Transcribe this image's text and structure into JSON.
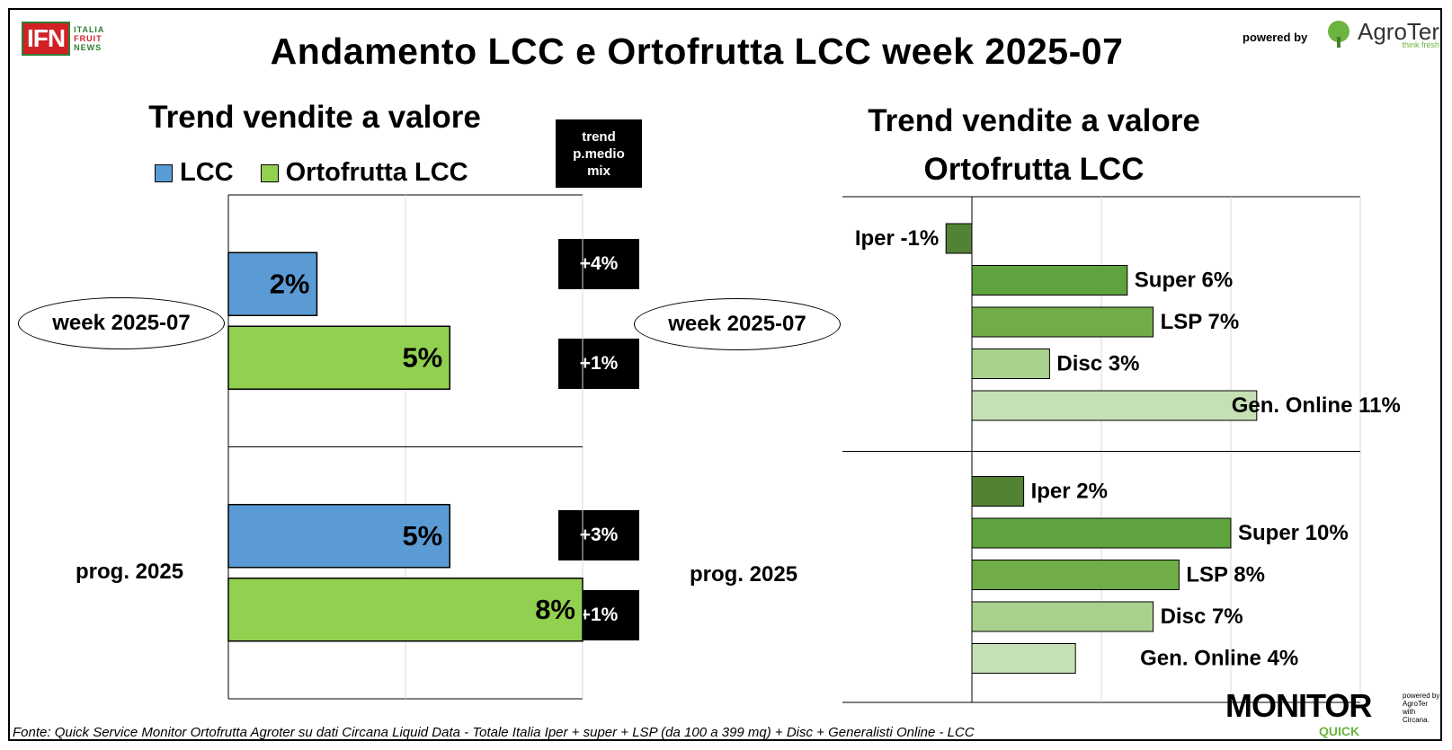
{
  "header": {
    "title": "Andamento LCC e Ortofrutta LCC week 2025-07",
    "ifn_logo": {
      "main": "IFN",
      "side1": "ITALIA",
      "side2": "FRUIT",
      "side3": "NEWS"
    },
    "powered_by": "powered by",
    "agroter_logo": "AgroTer",
    "agroter_tagline": "think fresh"
  },
  "left": {
    "subtitle": "Trend vendite a valore",
    "legend": [
      {
        "name": "LCC",
        "color": "#5b9bd5"
      },
      {
        "name": "Ortofrutta LCC",
        "color": "#92d050"
      }
    ],
    "trend_header": [
      "trend",
      "p.medio",
      "mix"
    ],
    "row_labels": [
      "week 2025-07",
      "prog. 2025"
    ],
    "trend_values": [
      "+4%",
      "+1%",
      "+3%",
      "+1%"
    ]
  },
  "right": {
    "subtitle_line1": "Trend vendite a valore",
    "subtitle_line2": "Ortofrutta LCC",
    "row_labels": [
      "week 2025-07",
      "prog. 2025"
    ]
  },
  "chart_data": [
    {
      "type": "bar",
      "orientation": "horizontal",
      "title": "Trend vendite a valore",
      "categories": [
        "week 2025-07",
        "prog. 2025"
      ],
      "series": [
        {
          "name": "LCC",
          "color": "#5b9bd5",
          "values": [
            2,
            5
          ],
          "labels": [
            "2%",
            "5%"
          ]
        },
        {
          "name": "Ortofrutta LCC",
          "color": "#92d050",
          "values": [
            5,
            8
          ],
          "labels": [
            "5%",
            "8%"
          ]
        }
      ],
      "xlim": [
        0,
        8
      ],
      "grid": true,
      "legend": "top"
    },
    {
      "type": "bar",
      "orientation": "horizontal",
      "title": "Trend vendite a valore Ortofrutta LCC",
      "categories": [
        "week 2025-07",
        "prog. 2025"
      ],
      "groups": [
        {
          "category": "week 2025-07",
          "bars": [
            {
              "name": "Iper",
              "value": -1,
              "label": "Iper -1%",
              "color": "#548235"
            },
            {
              "name": "Super",
              "value": 6,
              "label": "Super 6%",
              "color": "#5ea33d"
            },
            {
              "name": "LSP",
              "value": 7,
              "label": "LSP 7%",
              "color": "#70ad47"
            },
            {
              "name": "Disc",
              "value": 3,
              "label": "Disc 3%",
              "color": "#a9d18e"
            },
            {
              "name": "Gen. Online",
              "value": 11,
              "label": "Gen. Online 11%",
              "color": "#c5e0b4"
            }
          ]
        },
        {
          "category": "prog. 2025",
          "bars": [
            {
              "name": "Iper",
              "value": 2,
              "label": "Iper 2%",
              "color": "#548235"
            },
            {
              "name": "Super",
              "value": 10,
              "label": "Super 10%",
              "color": "#5ea33d"
            },
            {
              "name": "LSP",
              "value": 8,
              "label": "LSP 8%",
              "color": "#70ad47"
            },
            {
              "name": "Disc",
              "value": 7,
              "label": "Disc 7%",
              "color": "#a9d18e"
            },
            {
              "name": "Gen. Online",
              "value": 4,
              "label": "Gen. Online 4%",
              "color": "#c5e0b4"
            }
          ]
        }
      ],
      "xlim": [
        -5,
        15
      ],
      "grid": true
    }
  ],
  "footer": {
    "source": "Fonte: Quick Service Monitor Ortofrutta Agroter su dati Circana Liquid Data - Totale Italia Iper + super + LSP (da 100 a 399 mq) + Disc + Generalisti Online - LCC",
    "monitor_logo": "MONITOR",
    "monitor_sub": "QUICK",
    "monitor_powered": [
      "powered by",
      "AgroTer",
      "with",
      "Circana."
    ]
  }
}
